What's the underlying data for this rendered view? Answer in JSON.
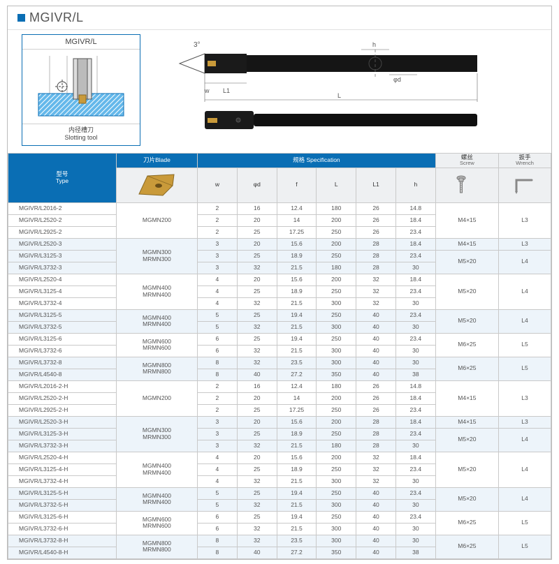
{
  "title": "MGIVR/L",
  "diagram": {
    "box_caption_top": "MGIVR/L",
    "box_caption_cn": "内径槽刀",
    "box_caption_en": "Slotting tool",
    "angle_label": "3°",
    "dims": [
      "w",
      "L1",
      "h",
      "φd",
      "L"
    ]
  },
  "headers": {
    "type_cn": "型号",
    "type_en": "Type",
    "blade": "刀片Blade",
    "spec": "规格 Specification",
    "screw_cn": "螺丝",
    "screw_en": "Screw",
    "wrench_cn": "扳手",
    "wrench_en": "Wrench",
    "cols": [
      "w",
      "φd",
      "f",
      "L",
      "L1",
      "h"
    ]
  },
  "groups": [
    {
      "blade": "MGMN200",
      "screw": "M4×15",
      "wrench": "L3",
      "alt": false,
      "rows": [
        {
          "m": "MGIVR/L2016-2",
          "v": [
            2,
            16,
            "12.4",
            180,
            26,
            "14.8"
          ]
        },
        {
          "m": "MGIVR/L2520-2",
          "v": [
            2,
            20,
            "14",
            200,
            26,
            "18.4"
          ]
        },
        {
          "m": "MGIVR/L2925-2",
          "v": [
            2,
            25,
            "17.25",
            250,
            26,
            "23.4"
          ]
        }
      ]
    },
    {
      "blade": "MGMN300\nMRMN300",
      "alt": true,
      "rows": [
        {
          "m": "MGIVR/L2520-3",
          "v": [
            3,
            20,
            "15.6",
            200,
            28,
            "18.4"
          ],
          "screw": "M4×15",
          "wrench": "L3"
        },
        {
          "m": "MGIVR/L3125-3",
          "v": [
            3,
            25,
            "18.9",
            250,
            28,
            "23.4"
          ],
          "screw": "M5×20",
          "wrench": "L4",
          "span": 2
        },
        {
          "m": "MGIVR/L3732-3",
          "v": [
            3,
            32,
            "21.5",
            180,
            28,
            "30"
          ]
        }
      ]
    },
    {
      "blade": "MGMN400\nMRMN400",
      "screw": "M5×20",
      "wrench": "L4",
      "alt": false,
      "rows": [
        {
          "m": "MGIVR/L2520-4",
          "v": [
            4,
            20,
            "15.6",
            200,
            32,
            "18.4"
          ]
        },
        {
          "m": "MGIVR/L3125-4",
          "v": [
            4,
            25,
            "18.9",
            250,
            32,
            "23.4"
          ]
        },
        {
          "m": "MGIVR/L3732-4",
          "v": [
            4,
            32,
            "21.5",
            300,
            32,
            "30"
          ]
        }
      ]
    },
    {
      "blade": "MGMN400\nMRMN400",
      "screw": "M5×20",
      "wrench": "L4",
      "alt": true,
      "rows": [
        {
          "m": "MGIVR/L3125-5",
          "v": [
            5,
            25,
            "19.4",
            250,
            40,
            "23.4"
          ]
        },
        {
          "m": "MGIVR/L3732-5",
          "v": [
            5,
            32,
            "21.5",
            300,
            40,
            "30"
          ]
        }
      ]
    },
    {
      "blade": "MGMN600\nMRMN600",
      "screw": "M6×25",
      "wrench": "L5",
      "alt": false,
      "rows": [
        {
          "m": "MGIVR/L3125-6",
          "v": [
            6,
            25,
            "19.4",
            250,
            40,
            "23.4"
          ]
        },
        {
          "m": "MGIVR/L3732-6",
          "v": [
            6,
            32,
            "21.5",
            300,
            40,
            "30"
          ]
        }
      ]
    },
    {
      "blade": "MGMN800\nMRMN800",
      "screw": "M6×25",
      "wrench": "L5",
      "alt": true,
      "rows": [
        {
          "m": "MGIVR/L3732-8",
          "v": [
            8,
            32,
            "23.5",
            300,
            40,
            "30"
          ]
        },
        {
          "m": "MGIVR/L4540-8",
          "v": [
            8,
            40,
            "27.2",
            350,
            40,
            "38"
          ]
        }
      ]
    },
    {
      "blade": "MGMN200",
      "screw": "M4×15",
      "wrench": "L3",
      "alt": false,
      "rows": [
        {
          "m": "MGIVR/L2016-2-H",
          "v": [
            2,
            16,
            "12.4",
            180,
            26,
            "14.8"
          ]
        },
        {
          "m": "MGIVR/L2520-2-H",
          "v": [
            2,
            20,
            "14",
            200,
            26,
            "18.4"
          ]
        },
        {
          "m": "MGIVR/L2925-2-H",
          "v": [
            2,
            25,
            "17.25",
            250,
            26,
            "23.4"
          ]
        }
      ]
    },
    {
      "blade": "MGMN300\nMRMN300",
      "alt": true,
      "rows": [
        {
          "m": "MGIVR/L2520-3-H",
          "v": [
            3,
            20,
            "15.6",
            200,
            28,
            "18.4"
          ],
          "screw": "M4×15",
          "wrench": "L3"
        },
        {
          "m": "MGIVR/L3125-3-H",
          "v": [
            3,
            25,
            "18.9",
            250,
            28,
            "23.4"
          ],
          "screw": "M5×20",
          "wrench": "L4",
          "span": 2
        },
        {
          "m": "MGIVR/L3732-3-H",
          "v": [
            3,
            32,
            "21.5",
            180,
            28,
            "30"
          ]
        }
      ]
    },
    {
      "blade": "MGMN400\nMRMN400",
      "screw": "M5×20",
      "wrench": "L4",
      "alt": false,
      "rows": [
        {
          "m": "MGIVR/L2520-4-H",
          "v": [
            4,
            20,
            "15.6",
            200,
            32,
            "18.4"
          ]
        },
        {
          "m": "MGIVR/L3125-4-H",
          "v": [
            4,
            25,
            "18.9",
            250,
            32,
            "23.4"
          ]
        },
        {
          "m": "MGIVR/L3732-4-H",
          "v": [
            4,
            32,
            "21.5",
            300,
            32,
            "30"
          ]
        }
      ]
    },
    {
      "blade": "MGMN400\nMRMN400",
      "screw": "M5×20",
      "wrench": "L4",
      "alt": true,
      "rows": [
        {
          "m": "MGIVR/L3125-5-H",
          "v": [
            5,
            25,
            "19.4",
            250,
            40,
            "23.4"
          ]
        },
        {
          "m": "MGIVR/L3732-5-H",
          "v": [
            5,
            32,
            "21.5",
            300,
            40,
            "30"
          ]
        }
      ]
    },
    {
      "blade": "MGMN600\nMRMN600",
      "screw": "M6×25",
      "wrench": "L5",
      "alt": false,
      "rows": [
        {
          "m": "MGIVR/L3125-6-H",
          "v": [
            6,
            25,
            "19.4",
            250,
            40,
            "23.4"
          ]
        },
        {
          "m": "MGIVR/L3732-6-H",
          "v": [
            6,
            32,
            "21.5",
            300,
            40,
            "30"
          ]
        }
      ]
    },
    {
      "blade": "MGMN800\nMRMN800",
      "screw": "M6×25",
      "wrench": "L5",
      "alt": true,
      "rows": [
        {
          "m": "MGIVR/L3732-8-H",
          "v": [
            8,
            32,
            "23.5",
            300,
            40,
            "30"
          ]
        },
        {
          "m": "MGIVR/L4540-8-H",
          "v": [
            8,
            40,
            "27.2",
            350,
            40,
            "38"
          ]
        }
      ]
    }
  ],
  "colors": {
    "accent": "#0a6eb4",
    "hatch": "#3aa2de",
    "tool": "#222222",
    "insert": "#c99a3a",
    "insert_dark": "#8a6a24",
    "row_alt": "#edf4fa",
    "border": "#c9c9c9"
  }
}
